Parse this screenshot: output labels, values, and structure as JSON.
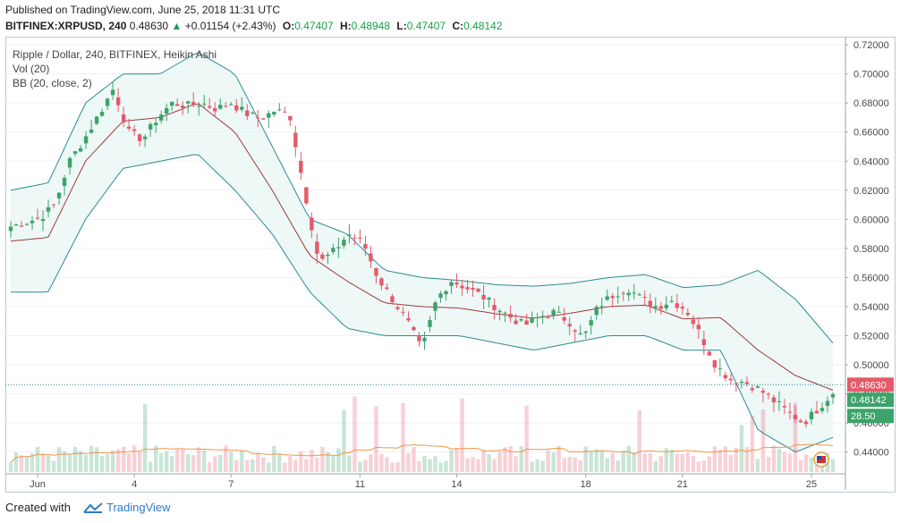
{
  "header": {
    "published": "Published on TradingView.com, June 25, 2018 11:31 UTC",
    "symbol": "BITFINEX:XRPUSD, 240",
    "last": "0.48630",
    "change": "+0.01154 (+2.43%)",
    "o_label": "O:",
    "o_value": "0.47407",
    "h_label": "H:",
    "h_value": "0.48948",
    "l_label": "L:",
    "l_value": "0.47407",
    "c_label": "C:",
    "c_value": "0.48142"
  },
  "legend": {
    "series": "Ripple / Dollar, 240, BITFINEX, Heikin Ashi",
    "vol": "Vol (20)",
    "bb": "BB (20, close, 2)"
  },
  "footer": {
    "created_with": "Created with",
    "brand": "TradingView"
  },
  "colors": {
    "up": "#3ca36a",
    "down": "#e45a6a",
    "bb_band": "#2d8a8f",
    "bb_basis": "#a23a3a",
    "vol_ma": "#f0964a",
    "last_tag": "#e45a6a",
    "close_tag": "#3ca36a",
    "vol_tag": "#3ca36a"
  },
  "chart_data": {
    "type": "candlestick",
    "style": "Heikin Ashi",
    "title": "Ripple / Dollar, 240, BITFINEX",
    "ylim": [
      0.425,
      0.725
    ],
    "y_ticks": [
      "0.72000",
      "0.70000",
      "0.68000",
      "0.66000",
      "0.64000",
      "0.62000",
      "0.60000",
      "0.58000",
      "0.56000",
      "0.54000",
      "0.52000",
      "0.50000",
      "0.48000",
      "0.46000",
      "0.44000"
    ],
    "x_ticks": [
      {
        "label": "Jun",
        "bar": 5
      },
      {
        "label": "4",
        "bar": 23
      },
      {
        "label": "7",
        "bar": 41
      },
      {
        "label": "11",
        "bar": 65
      },
      {
        "label": "14",
        "bar": 83
      },
      {
        "label": "18",
        "bar": 107
      },
      {
        "label": "21",
        "bar": 125
      },
      {
        "label": "25",
        "bar": 149
      }
    ],
    "price_tags": {
      "last": "0.48630",
      "close": "0.48142",
      "vol": "28.50"
    },
    "key_closes": [
      0.595,
      0.598,
      0.601,
      0.61,
      0.64,
      0.655,
      0.672,
      0.69,
      0.66,
      0.655,
      0.67,
      0.68,
      0.678,
      0.68,
      0.676,
      0.68,
      0.673,
      0.669,
      0.675,
      0.672,
      0.62,
      0.57,
      0.578,
      0.59,
      0.584,
      0.56,
      0.545,
      0.53,
      0.51,
      0.545,
      0.558,
      0.553,
      0.548,
      0.54,
      0.533,
      0.527,
      0.533,
      0.536,
      0.53,
      0.518,
      0.54,
      0.548,
      0.553,
      0.545,
      0.54,
      0.544,
      0.538,
      0.52,
      0.5,
      0.49,
      0.488,
      0.483,
      0.475,
      0.467,
      0.46,
      0.47,
      0.481
    ],
    "bb_upper_profile": [
      0.62,
      0.625,
      0.68,
      0.7,
      0.7,
      0.715,
      0.7,
      0.65,
      0.6,
      0.59,
      0.565,
      0.56,
      0.558,
      0.555,
      0.554,
      0.556,
      0.56,
      0.562,
      0.553,
      0.555,
      0.565,
      0.545,
      0.515
    ],
    "bb_lower_profile": [
      0.55,
      0.55,
      0.6,
      0.635,
      0.64,
      0.645,
      0.62,
      0.59,
      0.55,
      0.525,
      0.52,
      0.52,
      0.52,
      0.515,
      0.51,
      0.515,
      0.52,
      0.52,
      0.51,
      0.51,
      0.455,
      0.44,
      0.45
    ],
    "volume_ylim": [
      0,
      180
    ]
  }
}
